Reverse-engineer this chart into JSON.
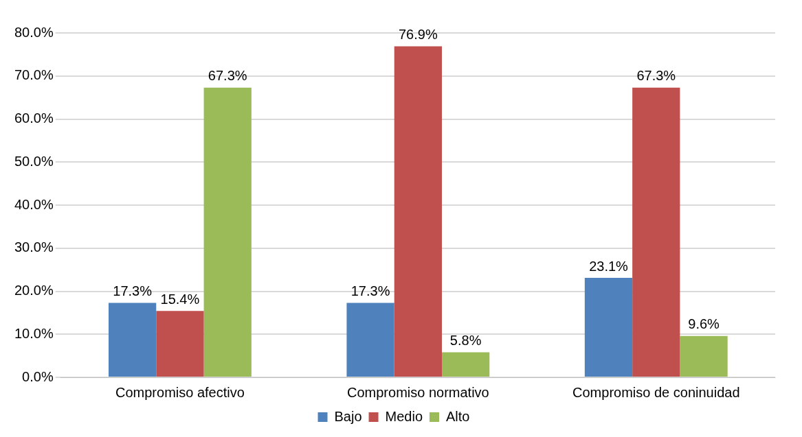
{
  "chart_data": {
    "type": "bar",
    "categories": [
      "Compromiso afectivo",
      "Compromiso normativo",
      "Compromiso de coninuidad"
    ],
    "series": [
      {
        "name": "Bajo",
        "color": "#4f81bd",
        "values": [
          17.3,
          17.3,
          23.1
        ],
        "value_labels": [
          "17.3%",
          "17.3%",
          "23.1%"
        ]
      },
      {
        "name": "Medio",
        "color": "#c0504d",
        "values": [
          15.4,
          76.9,
          67.3
        ],
        "value_labels": [
          "15.4%",
          "76.9%",
          "67.3%"
        ]
      },
      {
        "name": "Alto",
        "color": "#9bbb59",
        "values": [
          67.3,
          5.8,
          9.6
        ],
        "value_labels": [
          "67.3%",
          "5.8%",
          "9.6%"
        ]
      }
    ],
    "ylim": [
      0,
      80
    ],
    "yticks": [
      {
        "value": 0,
        "label": "0.0%"
      },
      {
        "value": 10,
        "label": "10.0%"
      },
      {
        "value": 20,
        "label": "20.0%"
      },
      {
        "value": 30,
        "label": "30.0%"
      },
      {
        "value": 40,
        "label": "40.0%"
      },
      {
        "value": 50,
        "label": "50.0%"
      },
      {
        "value": 60,
        "label": "60.0%"
      },
      {
        "value": 70,
        "label": "70.0%"
      },
      {
        "value": 80,
        "label": "80.0%"
      }
    ],
    "grid": "y",
    "legend": "bottom"
  }
}
